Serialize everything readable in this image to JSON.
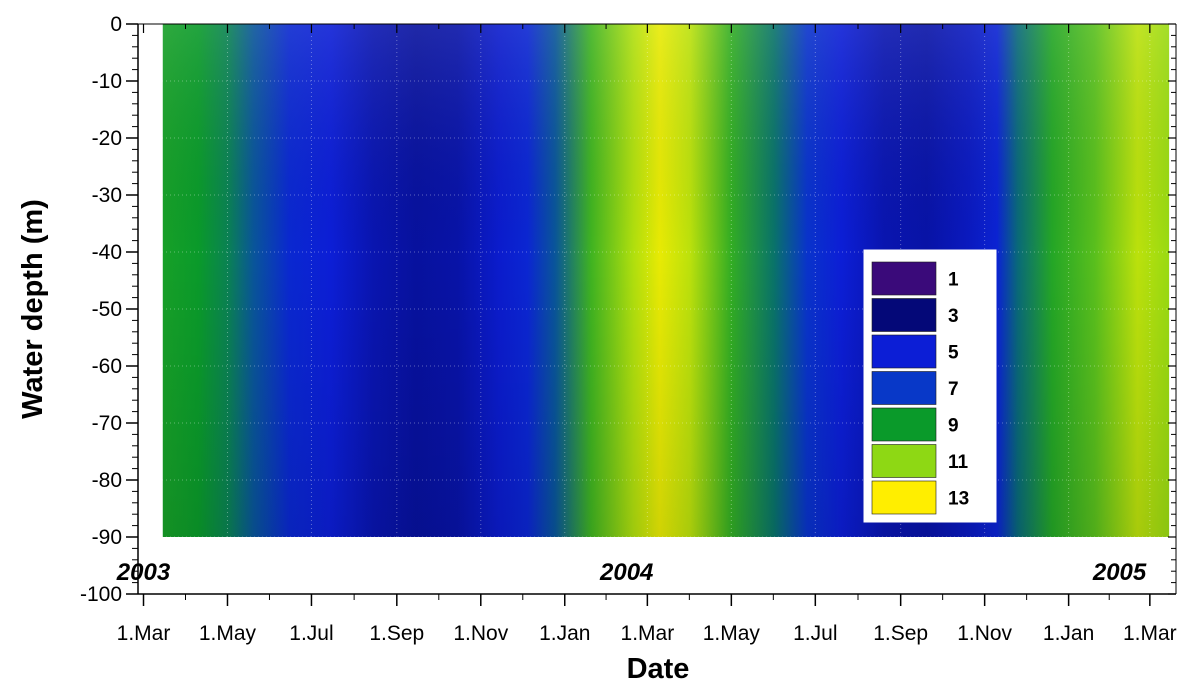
{
  "chart_data": {
    "type": "heatmap",
    "xlabel": "Date",
    "ylabel": "Water depth (m)",
    "ylim": [
      -100,
      0
    ],
    "y_ticks": [
      0,
      -10,
      -20,
      -30,
      -40,
      -50,
      -60,
      -70,
      -80,
      -90,
      -100
    ],
    "y_tick_labels": [
      "0",
      "-10",
      "-20",
      "-30",
      "-40",
      "-50",
      "-60",
      "-70",
      "-80",
      "-90",
      "-100"
    ],
    "xlim": [
      "2003-02-25",
      "2005-03-20"
    ],
    "x_ticks": [
      "2003-03-01",
      "2003-05-01",
      "2003-07-01",
      "2003-09-01",
      "2003-11-01",
      "2004-01-01",
      "2004-03-01",
      "2004-05-01",
      "2004-07-01",
      "2004-09-01",
      "2004-11-01",
      "2005-01-01",
      "2005-03-01"
    ],
    "x_tick_labels": [
      "1.Mar",
      "1.May",
      "1.Jul",
      "1.Sep",
      "1.Nov",
      "1.Jan",
      "1.Mar",
      "1.May",
      "1.Jul",
      "1.Sep",
      "1.Nov",
      "1.Jan",
      "1.Mar"
    ],
    "year_labels": [
      {
        "text": "2003",
        "date": "2003-03-01"
      },
      {
        "text": "2004",
        "date": "2004-02-15"
      },
      {
        "text": "2005",
        "date": "2005-02-07"
      }
    ],
    "data_depth_range": [
      -90,
      0
    ],
    "data_date_range": [
      "2003-03-15",
      "2005-03-15"
    ],
    "legend": {
      "placement": "center-right",
      "levels": [
        {
          "label": "1",
          "color": "#3a0a7a"
        },
        {
          "label": "3",
          "color": "#040878"
        },
        {
          "label": "5",
          "color": "#0c1ed6"
        },
        {
          "label": "7",
          "color": "#0838c8"
        },
        {
          "label": "9",
          "color": "#0a9a2a"
        },
        {
          "label": "11",
          "color": "#8ed814"
        },
        {
          "label": "13",
          "color": "#ffee00"
        }
      ]
    },
    "surface_profile": [
      {
        "date": "2003-03-15",
        "value": 9.2
      },
      {
        "date": "2003-04-10",
        "value": 9.0
      },
      {
        "date": "2003-05-01",
        "value": 8.5
      },
      {
        "date": "2003-05-20",
        "value": 7.6
      },
      {
        "date": "2003-06-15",
        "value": 5.8
      },
      {
        "date": "2003-07-15",
        "value": 5.0
      },
      {
        "date": "2003-08-15",
        "value": 4.2
      },
      {
        "date": "2003-09-15",
        "value": 3.8
      },
      {
        "date": "2003-10-15",
        "value": 4.0
      },
      {
        "date": "2003-11-15",
        "value": 4.8
      },
      {
        "date": "2003-12-05",
        "value": 5.6
      },
      {
        "date": "2003-12-25",
        "value": 7.6
      },
      {
        "date": "2004-01-20",
        "value": 9.8
      },
      {
        "date": "2004-02-20",
        "value": 11.6
      },
      {
        "date": "2004-03-10",
        "value": 12.6
      },
      {
        "date": "2004-04-01",
        "value": 11.8
      },
      {
        "date": "2004-05-01",
        "value": 9.6
      },
      {
        "date": "2004-06-01",
        "value": 8.2
      },
      {
        "date": "2004-06-25",
        "value": 6.6
      },
      {
        "date": "2004-07-20",
        "value": 5.0
      },
      {
        "date": "2004-08-20",
        "value": 4.2
      },
      {
        "date": "2004-09-20",
        "value": 4.0
      },
      {
        "date": "2004-10-20",
        "value": 4.5
      },
      {
        "date": "2004-11-10",
        "value": 5.4
      },
      {
        "date": "2004-11-25",
        "value": 8.0
      },
      {
        "date": "2004-12-20",
        "value": 9.4
      },
      {
        "date": "2005-01-20",
        "value": 10.2
      },
      {
        "date": "2005-02-20",
        "value": 11.8
      },
      {
        "date": "2005-03-15",
        "value": 11.2
      }
    ]
  }
}
